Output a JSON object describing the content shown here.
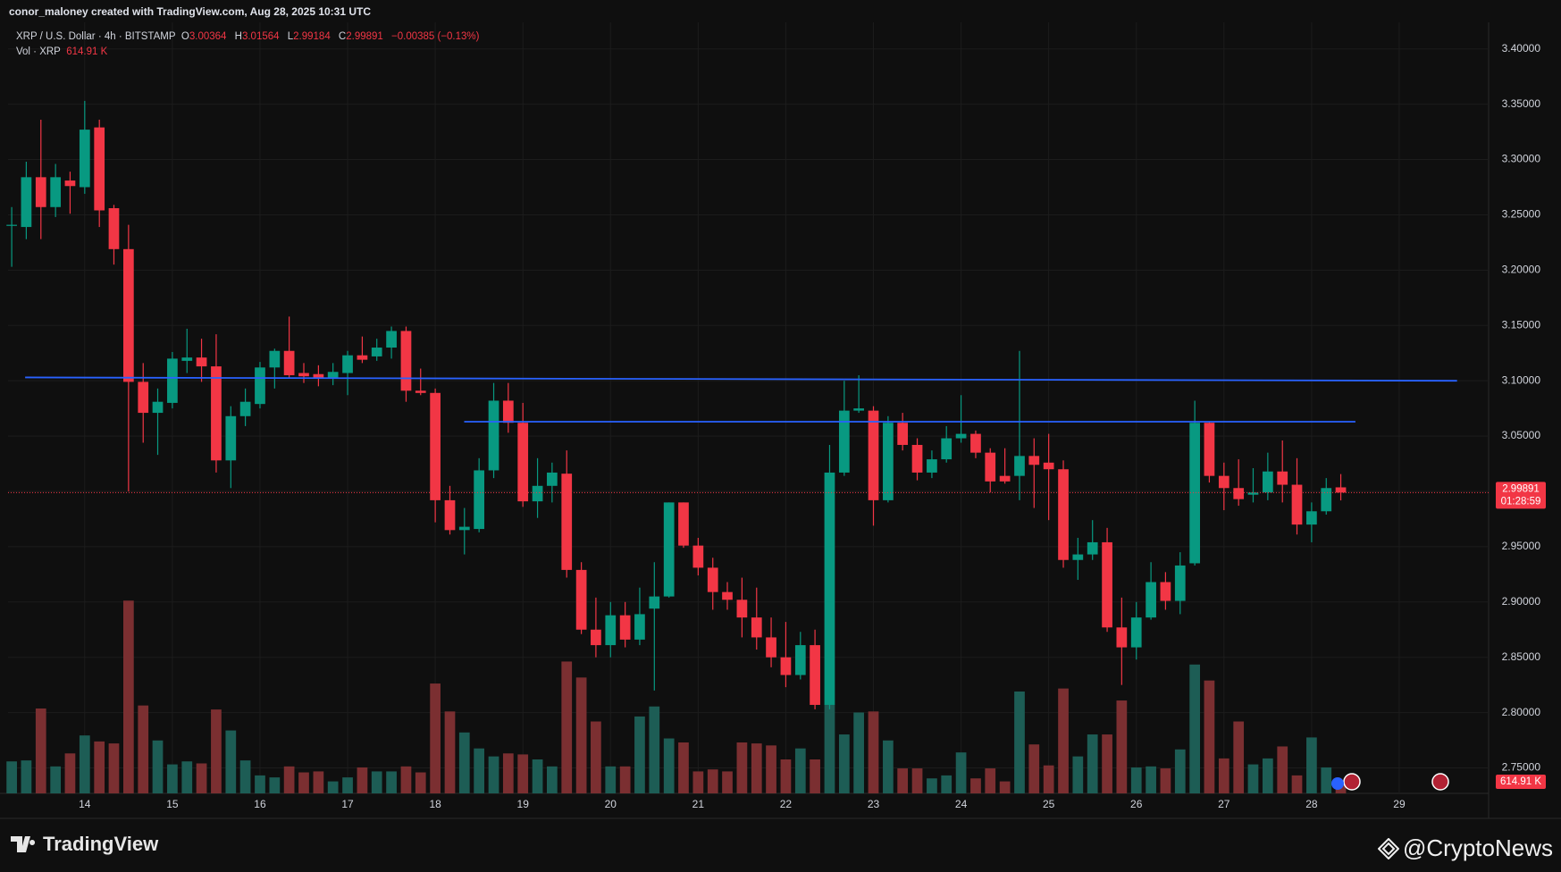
{
  "header": {
    "credit": "conor_maloney created with TradingView.com, Aug 28, 2025 10:31 UTC"
  },
  "footer": {
    "brand": "TradingView",
    "watermark": "@CryptoNews"
  },
  "chart_data": {
    "type": "candlestick",
    "symbol": "XRP / U.S. Dollar · 4h · BITSTAMP",
    "ohlc_letters": [
      "O",
      "H",
      "L",
      "C"
    ],
    "change_label": "−0.00385 (−0.13%)",
    "volume_title": "Vol · XRP",
    "volume_last_label": "614.91 K",
    "countdown": "01:28:59",
    "up_color": "#089981",
    "down_color": "#f23645",
    "volume_up_color": "#1d5d55",
    "volume_down_color": "#7b2f31",
    "grid": true,
    "xlim": [
      13.125,
      30.02
    ],
    "ylim": [
      2.727,
      3.424
    ],
    "xticks": [
      14,
      15,
      16,
      17,
      18,
      19,
      20,
      21,
      22,
      23,
      24,
      25,
      26,
      27,
      28,
      29
    ],
    "yticks": [
      {
        "value": 2.75,
        "label": "2.75000"
      },
      {
        "value": 2.8,
        "label": "2.80000"
      },
      {
        "value": 2.85,
        "label": "2.85000"
      },
      {
        "value": 2.9,
        "label": "2.90000"
      },
      {
        "value": 2.95,
        "label": "2.95000"
      },
      {
        "value": 3.0,
        "label": "3.00000"
      },
      {
        "value": 3.05,
        "label": "3.05000"
      },
      {
        "value": 3.1,
        "label": "3.10000"
      },
      {
        "value": 3.15,
        "label": "3.15000"
      },
      {
        "value": 3.2,
        "label": "3.20000"
      },
      {
        "value": 3.25,
        "label": "3.25000"
      },
      {
        "value": 3.3,
        "label": "3.30000"
      },
      {
        "value": 3.35,
        "label": "3.35000"
      },
      {
        "value": 3.4,
        "label": "3.40000"
      }
    ],
    "x": [
      13.167,
      13.333,
      13.5,
      13.667,
      13.833,
      14,
      14.167,
      14.333,
      14.5,
      14.667,
      14.833,
      15,
      15.167,
      15.333,
      15.5,
      15.667,
      15.833,
      16,
      16.167,
      16.333,
      16.5,
      16.667,
      16.833,
      17,
      17.167,
      17.333,
      17.5,
      17.667,
      17.833,
      18,
      18.167,
      18.333,
      18.5,
      18.667,
      18.833,
      19,
      19.167,
      19.333,
      19.5,
      19.667,
      19.833,
      20,
      20.167,
      20.333,
      20.5,
      20.667,
      20.833,
      21,
      21.167,
      21.333,
      21.5,
      21.667,
      21.833,
      22,
      22.167,
      22.333,
      22.5,
      22.667,
      22.833,
      23,
      23.167,
      23.333,
      23.5,
      23.667,
      23.833,
      24,
      24.167,
      24.333,
      24.5,
      24.667,
      24.833,
      25,
      25.167,
      25.333,
      25.5,
      25.667,
      25.833,
      26,
      26.167,
      26.333,
      26.5,
      26.667,
      26.833,
      27,
      27.167,
      27.333,
      27.5,
      27.667,
      27.833,
      28,
      28.167,
      28.333
    ],
    "open": [
      3.24,
      3.239,
      3.284,
      3.257,
      3.281,
      3.275,
      3.329,
      3.256,
      3.219,
      3.099,
      3.071,
      3.08,
      3.118,
      3.121,
      3.113,
      3.028,
      3.068,
      3.079,
      3.112,
      3.127,
      3.107,
      3.106,
      3.102,
      3.107,
      3.123,
      3.122,
      3.13,
      3.145,
      3.091,
      3.089,
      2.992,
      2.965,
      2.966,
      3.019,
      3.082,
      3.062,
      2.991,
      3.005,
      3.016,
      2.929,
      2.875,
      2.861,
      2.888,
      2.866,
      2.894,
      2.905,
      2.99,
      2.951,
      2.931,
      2.909,
      2.902,
      2.886,
      2.868,
      2.85,
      2.834,
      2.861,
      2.807,
      3.017,
      3.073,
      3.073,
      2.992,
      3.062,
      3.042,
      3.017,
      3.029,
      3.048,
      3.052,
      3.035,
      3.014,
      3.014,
      3.032,
      3.026,
      3.02,
      2.938,
      2.943,
      2.954,
      2.877,
      2.859,
      2.886,
      2.918,
      2.901,
      2.935,
      3.062,
      3.014,
      3.003,
      2.997,
      2.999,
      3.018,
      3.006,
      2.97,
      2.982,
      3.00364
    ],
    "high": [
      3.257,
      3.298,
      3.336,
      3.296,
      3.289,
      3.353,
      3.336,
      3.259,
      3.241,
      3.116,
      3.093,
      3.126,
      3.147,
      3.138,
      3.142,
      3.077,
      3.093,
      3.117,
      3.129,
      3.158,
      3.116,
      3.114,
      3.116,
      3.127,
      3.14,
      3.138,
      3.149,
      3.149,
      3.111,
      3.093,
      3.005,
      2.985,
      3.03,
      3.098,
      3.098,
      3.08,
      3.03,
      3.026,
      3.037,
      2.936,
      2.904,
      2.9,
      2.9,
      2.913,
      2.936,
      2.99,
      2.99,
      2.958,
      2.94,
      2.918,
      2.922,
      2.913,
      2.886,
      2.882,
      2.873,
      2.875,
      3.042,
      3.1,
      3.105,
      3.077,
      3.068,
      3.071,
      3.048,
      3.037,
      3.059,
      3.087,
      3.055,
      3.039,
      3.039,
      3.127,
      3.048,
      3.052,
      3.028,
      2.958,
      2.974,
      2.967,
      2.904,
      2.9,
      2.936,
      2.927,
      2.945,
      3.082,
      3.063,
      3.026,
      3.029,
      3.021,
      3.035,
      3.046,
      3.03,
      2.99,
      3.012,
      3.01564
    ],
    "low": [
      3.203,
      3.228,
      3.228,
      3.248,
      3.251,
      3.269,
      3.239,
      3.205,
      3.0,
      3.044,
      3.033,
      3.075,
      3.107,
      3.099,
      3.017,
      3.003,
      3.059,
      3.075,
      3.093,
      3.102,
      3.098,
      3.095,
      3.096,
      3.087,
      3.116,
      3.118,
      3.12,
      3.081,
      3.087,
      2.972,
      2.961,
      2.943,
      2.963,
      3.012,
      3.053,
      2.986,
      2.976,
      2.99,
      2.922,
      2.871,
      2.85,
      2.85,
      2.859,
      2.861,
      2.82,
      2.904,
      2.949,
      2.924,
      2.893,
      2.893,
      2.868,
      2.857,
      2.841,
      2.823,
      2.83,
      2.803,
      2.803,
      3.014,
      3.071,
      2.969,
      2.99,
      3.037,
      3.01,
      3.012,
      3.026,
      3.044,
      3.03,
      2.999,
      3.007,
      2.992,
      2.985,
      2.974,
      2.931,
      2.92,
      2.938,
      2.873,
      2.825,
      2.848,
      2.884,
      2.893,
      2.889,
      2.933,
      3.008,
      2.983,
      2.987,
      2.99,
      2.992,
      2.99,
      2.961,
      2.954,
      2.979,
      2.99184
    ],
    "close": [
      3.241,
      3.284,
      3.257,
      3.284,
      3.276,
      3.327,
      3.254,
      3.219,
      3.099,
      3.071,
      3.081,
      3.12,
      3.121,
      3.113,
      3.028,
      3.068,
      3.081,
      3.112,
      3.127,
      3.105,
      3.104,
      3.102,
      3.108,
      3.123,
      3.119,
      3.13,
      3.145,
      3.091,
      3.089,
      2.992,
      2.965,
      2.968,
      3.019,
      3.082,
      3.062,
      2.991,
      3.005,
      3.017,
      2.929,
      2.875,
      2.861,
      2.888,
      2.866,
      2.889,
      2.905,
      2.99,
      2.951,
      2.931,
      2.909,
      2.902,
      2.886,
      2.868,
      2.85,
      2.834,
      2.861,
      2.807,
      3.017,
      3.073,
      3.075,
      2.992,
      3.062,
      3.042,
      3.017,
      3.029,
      3.048,
      3.052,
      3.035,
      3.009,
      3.009,
      3.032,
      3.024,
      3.02,
      2.938,
      2.943,
      2.954,
      2.877,
      2.859,
      2.886,
      2.918,
      2.901,
      2.933,
      3.062,
      3.014,
      3.003,
      2.993,
      2.999,
      3.018,
      3.006,
      2.97,
      2.982,
      3.003,
      2.99891
    ],
    "volume": [
      1640,
      1691,
      4355,
      1383,
      2050,
      2972,
      2664,
      2562,
      9889,
      4509,
      2716,
      1486,
      1640,
      1537,
      4304,
      3228,
      1691,
      922,
      820,
      1383,
      1076,
      1127,
      615,
      820,
      1332,
      1127,
      1127,
      1383,
      1076,
      5636,
      4202,
      3126,
      2306,
      1896,
      2050,
      1998,
      1742,
      1383,
      6764,
      5944,
      3689,
      1383,
      1383,
      3945,
      4458,
      2818,
      2613,
      1127,
      1230,
      1127,
      2613,
      2562,
      2460,
      1742,
      2306,
      1742,
      4560,
      3023,
      4150,
      4202,
      2716,
      1281,
      1281,
      769,
      922,
      2101,
      769,
      1281,
      615,
      5226,
      2511,
      1435,
      5380,
      1896,
      3023,
      3023,
      4765,
      1332,
      1383,
      1281,
      2255,
      6610,
      5790,
      1793,
      3689,
      1486,
      1793,
      2408,
      922,
      2869,
      1332,
      614.91
    ],
    "levels": [
      {
        "x": [
          13.32,
          29.66
        ],
        "y": [
          3.103,
          3.1
        ],
        "color": "#2962ff"
      },
      {
        "x": [
          18.33,
          28.5
        ],
        "y": [
          3.063,
          3.063
        ],
        "color": "#2962ff"
      }
    ]
  }
}
